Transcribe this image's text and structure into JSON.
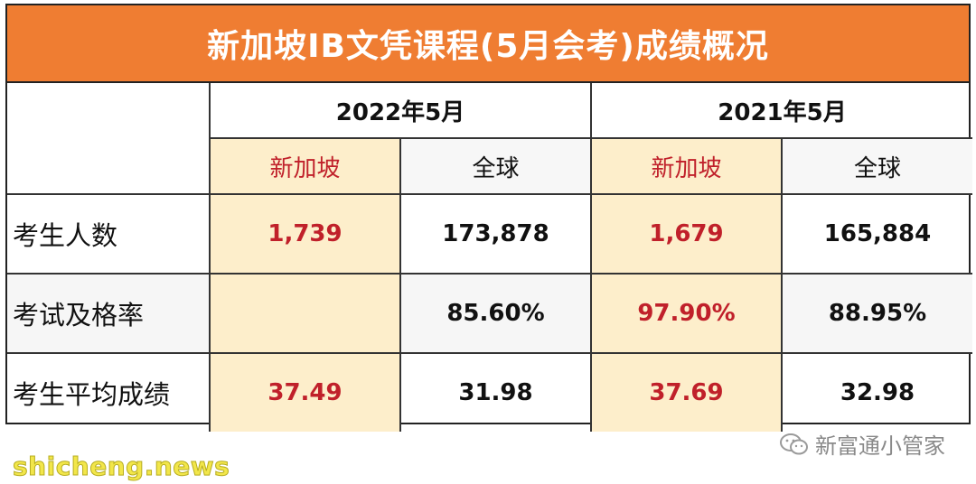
{
  "title": "新加坡IB文凭课程(5月会考)成绩概况",
  "years": [
    "2022年5月",
    "2021年5月"
  ],
  "regions": [
    "新加坡",
    "全球",
    "新加坡",
    "全球"
  ],
  "rows": [
    {
      "label": "考生人数",
      "values": [
        "1,739",
        "173,878",
        "1,679",
        "165,884"
      ]
    },
    {
      "label": "考试及格率",
      "values": [
        "",
        "85.60%",
        "97.90%",
        "88.95%"
      ]
    },
    {
      "label": "考生平均成绩",
      "values": [
        "37.49",
        "31.98",
        "37.69",
        "32.98"
      ]
    }
  ],
  "watermark": "新富通小管家",
  "site": "shicheng.news",
  "colors": {
    "title_bg": "#ef7d32",
    "singapore_bg": "#fdeecb",
    "singapore_text": "#c0202a"
  }
}
